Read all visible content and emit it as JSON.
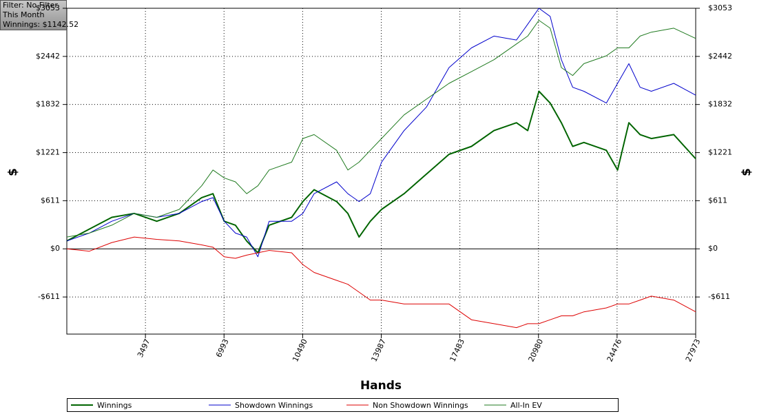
{
  "chart_data": {
    "type": "line",
    "annotations": [
      "Filter: No Filter",
      "This Month",
      "Winnings: $1142.52"
    ],
    "x_label": "Hands",
    "y_label": "$",
    "y2_label": "$",
    "x": [
      0,
      1000,
      2000,
      3000,
      4000,
      5000,
      6000,
      6500,
      7000,
      7500,
      8000,
      8500,
      9000,
      10000,
      10500,
      11000,
      12000,
      12500,
      13000,
      13500,
      14000,
      15000,
      16000,
      17000,
      18000,
      19000,
      20000,
      20500,
      21000,
      21500,
      22000,
      22500,
      23000,
      24000,
      24500,
      25000,
      25500,
      26000,
      27000,
      27973
    ],
    "series": [
      {
        "name": "Winnings",
        "color": "#006400",
        "width": 2,
        "values": [
          100,
          250,
          400,
          450,
          350,
          450,
          650,
          700,
          350,
          300,
          100,
          -50,
          300,
          400,
          600,
          750,
          600,
          450,
          150,
          350,
          500,
          700,
          950,
          1200,
          1300,
          1500,
          1600,
          1500,
          2000,
          1850,
          1600,
          1300,
          1350,
          1250,
          1000,
          1600,
          1450,
          1400,
          1450,
          1142.52
        ]
      },
      {
        "name": "Showdown Winnings",
        "color": "#0000cc",
        "width": 1,
        "values": [
          100,
          200,
          350,
          450,
          400,
          450,
          600,
          650,
          350,
          200,
          150,
          -100,
          350,
          350,
          450,
          700,
          850,
          700,
          600,
          700,
          1100,
          1500,
          1800,
          2300,
          2550,
          2700,
          2650,
          2850,
          3053,
          2950,
          2400,
          2050,
          2000,
          1850,
          2100,
          2350,
          2050,
          2000,
          2100,
          1950
        ]
      },
      {
        "name": "Non Showdown Winnings",
        "color": "#dd0000",
        "width": 1,
        "values": [
          0,
          -30,
          80,
          150,
          120,
          100,
          50,
          20,
          -100,
          -120,
          -80,
          -50,
          -20,
          -50,
          -200,
          -300,
          -400,
          -450,
          -550,
          -650,
          -650,
          -700,
          -700,
          -700,
          -900,
          -950,
          -1000,
          -950,
          -950,
          -900,
          -850,
          -850,
          -800,
          -750,
          -700,
          -700,
          -650,
          -600,
          -650,
          -800
        ]
      },
      {
        "name": "All-In EV",
        "color": "#1f7a1f",
        "width": 1,
        "values": [
          150,
          200,
          300,
          450,
          400,
          500,
          800,
          1000,
          900,
          850,
          700,
          800,
          1000,
          1100,
          1400,
          1450,
          1250,
          1000,
          1100,
          1250,
          1400,
          1700,
          1900,
          2100,
          2250,
          2400,
          2600,
          2700,
          2900,
          2800,
          2300,
          2200,
          2350,
          2450,
          2550,
          2550,
          2700,
          2750,
          2800,
          2670
        ]
      }
    ],
    "xlim": [
      0,
      27973
    ],
    "xticks": [
      3497,
      6993,
      10490,
      13987,
      17483,
      20980,
      24476,
      27973
    ],
    "ylim": [
      -1082,
      3053
    ],
    "yticks": [
      {
        "value": -611,
        "label": "-$611"
      },
      {
        "value": 0,
        "label": "$0"
      },
      {
        "value": 611,
        "label": "$611"
      },
      {
        "value": 1221,
        "label": "$1221"
      },
      {
        "value": 1832,
        "label": "$1832"
      },
      {
        "value": 2442,
        "label": "$2442"
      },
      {
        "value": 3053,
        "label": "$3053"
      }
    ],
    "grid": true,
    "legend": "bottom"
  }
}
